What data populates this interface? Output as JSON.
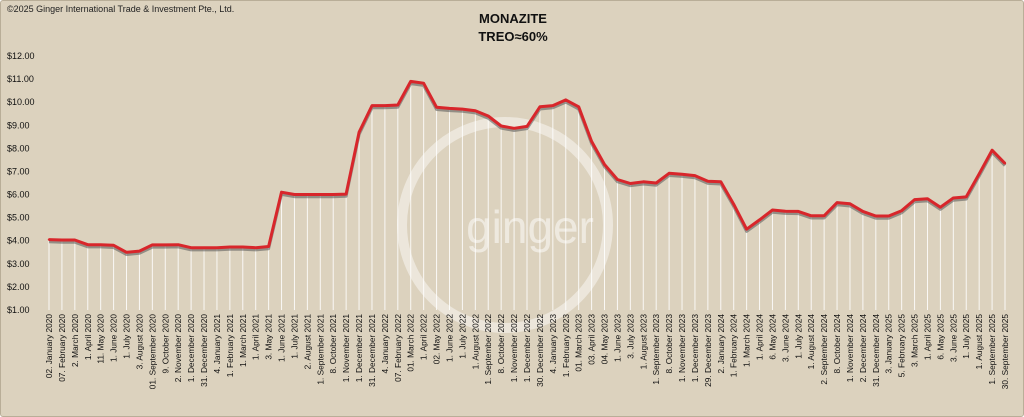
{
  "copyright": "©2025 Ginger International Trade & Investment Pte., Ltd.",
  "watermark": "ginger",
  "colors": {
    "background": "#dcd2be",
    "line": "#d8262b",
    "shadow": "#555555",
    "dropline": "#ffffff"
  },
  "chart_data": {
    "type": "line",
    "title": "MONAZITE",
    "subtitle": "TREO≈60%",
    "xlabel": "",
    "ylabel": "",
    "ylim": [
      1,
      12
    ],
    "yticks": [
      "$1.00",
      "$2.00",
      "$3.00",
      "$4.00",
      "$5.00",
      "$6.00",
      "$7.00",
      "$8.00",
      "$9.00",
      "$10.00",
      "$11.00",
      "$12.00"
    ],
    "grid": false,
    "legend": "none",
    "x_labels": [
      "02. January 2020",
      "07. February 2020",
      "2. March 2020",
      "1. April 2020",
      "11. May 2020",
      "1. June 2020",
      "1. July 2020",
      "3. August 2020",
      "01. September 2020",
      "9. October 2020",
      "2. November 2020",
      "1. December 2020",
      "31. December 2020",
      "4. January 2021",
      "1. February 2021",
      "1. March 2021",
      "1. April 2021",
      "3. May 2021",
      "1. June 2021",
      "1. July 2021",
      "2. August 2021",
      "1. September 2021",
      "8. October 2021",
      "1. November 2021",
      "1. December 2021",
      "31. December 2021",
      "4. January 2022",
      "07. February 2022",
      "01. March 2022",
      "1. April 2022",
      "02. May 2022",
      "1. June 2022",
      "1. July 2022",
      "1. August 2022",
      "1. September 2022",
      "8. October 2022",
      "1. November 2022",
      "1. December 2022",
      "30. December 2022",
      "4. January 2023",
      "1. February 2023",
      "01. March 2023",
      "03. April 2023",
      "04. May 2023",
      "1. June 2023",
      "3. July 2023",
      "1. August 2023",
      "1. September 2023",
      "8. October 2023",
      "1. November 2023",
      "1. December 2023",
      "29. December 2023",
      "2. January 2024",
      "1. February 2024",
      "1. March 2024",
      "1. April 2024",
      "6. May 2024",
      "3. June 2024",
      "1. July 2024",
      "1. August 2024",
      "2. September 2024",
      "8. October 2024",
      "1. November 2024",
      "2. December 2024",
      "31. December 2024",
      "3. January 2025",
      "5. February 2025",
      "3. March 2025",
      "1. April 2025",
      "6. May 2025",
      "3. June 2025",
      "1. July 2025",
      "1. August 2025",
      "1. September 2025",
      "30. September 2025"
    ],
    "values": [
      4.05,
      4.03,
      4.03,
      3.83,
      3.83,
      3.8,
      3.5,
      3.55,
      3.82,
      3.82,
      3.83,
      3.7,
      3.7,
      3.7,
      3.73,
      3.73,
      3.7,
      3.75,
      6.1,
      6.0,
      6.0,
      6.0,
      6.0,
      6.02,
      8.7,
      9.85,
      9.85,
      9.88,
      10.9,
      10.82,
      9.78,
      9.73,
      9.7,
      9.63,
      9.4,
      8.97,
      8.87,
      8.95,
      9.8,
      9.85,
      10.1,
      9.8,
      8.3,
      7.3,
      6.65,
      6.48,
      6.55,
      6.5,
      6.92,
      6.88,
      6.82,
      6.58,
      6.55,
      5.58,
      4.5,
      4.9,
      5.33,
      5.28,
      5.27,
      5.08,
      5.08,
      5.65,
      5.6,
      5.27,
      5.07,
      5.07,
      5.3,
      5.78,
      5.82,
      5.45,
      5.85,
      5.9,
      6.9,
      7.92,
      7.35
    ]
  }
}
